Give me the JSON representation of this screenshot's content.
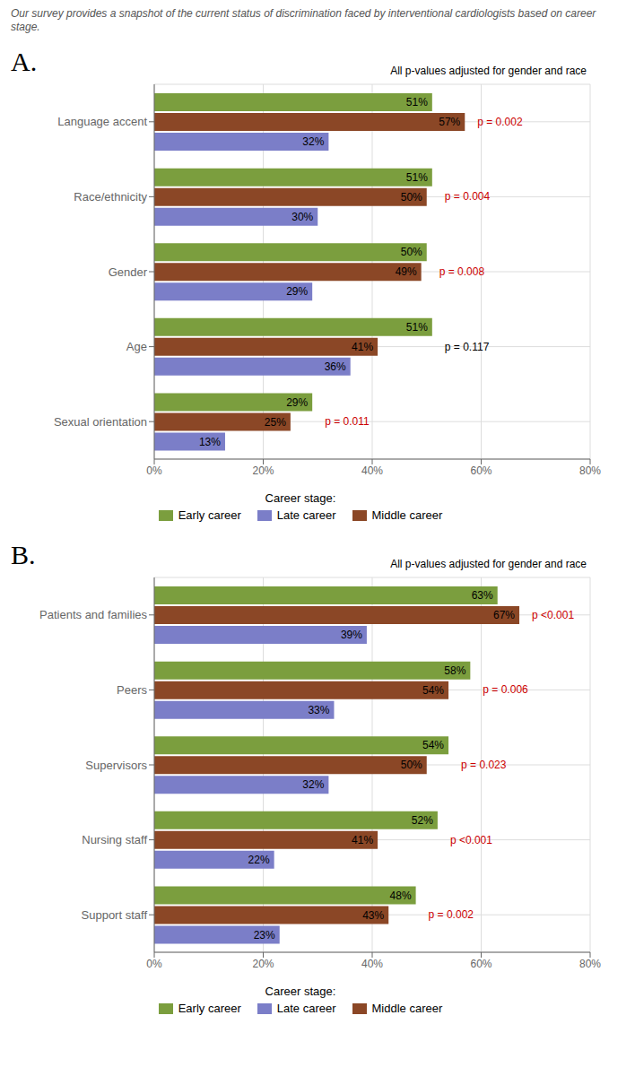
{
  "title": "Our survey provides a snapshot of the current status of discrimination faced by interventional cardiologists based on career stage.",
  "chart_data": [
    {
      "type": "bar",
      "orientation": "horizontal",
      "title": "A.",
      "subtitle": "All p-values adjusted for gender and race",
      "categories": [
        "Language accent",
        "Race/ethnicity",
        "Gender",
        "Age",
        "Sexual orientation"
      ],
      "series": [
        {
          "name": "Early career",
          "color": "#7B9E3E",
          "values": [
            51,
            51,
            50,
            51,
            29
          ],
          "value_labels": [
            "51%",
            "51%",
            "50%",
            "51%",
            "29%"
          ]
        },
        {
          "name": "Middle career",
          "color": "#8B4726",
          "values": [
            57,
            50,
            49,
            41,
            25
          ],
          "value_labels": [
            "57%",
            "50%",
            "49%",
            "41%",
            "25%"
          ]
        },
        {
          "name": "Late career",
          "color": "#7B7EC8",
          "values": [
            32,
            30,
            29,
            36,
            13
          ],
          "value_labels": [
            "32%",
            "30%",
            "29%",
            "36%",
            "13%"
          ]
        }
      ],
      "annotations": [
        {
          "category": "Language accent",
          "text": "p = 0.002",
          "color": "#cc0000"
        },
        {
          "category": "Race/ethnicity",
          "text": "p = 0.004",
          "color": "#cc0000"
        },
        {
          "category": "Gender",
          "text": "p = 0.008",
          "color": "#cc0000"
        },
        {
          "category": "Age",
          "text": "p = 0.117",
          "color": "#000000"
        },
        {
          "category": "Sexual orientation",
          "text": "p = 0.011",
          "color": "#cc0000"
        }
      ],
      "xlim": [
        0,
        80
      ],
      "xticks": [
        {
          "value": 0,
          "label": "0%"
        },
        {
          "value": 20,
          "label": "20%"
        },
        {
          "value": 40,
          "label": "40%"
        },
        {
          "value": 60,
          "label": "60%"
        },
        {
          "value": 80,
          "label": "80%"
        }
      ],
      "grid": true,
      "legend": "bottom",
      "legend_title": "Career stage:",
      "data_labels": true
    },
    {
      "type": "bar",
      "orientation": "horizontal",
      "title": "B.",
      "subtitle": "All p-values adjusted for gender and race",
      "categories": [
        "Patients and families",
        "Peers",
        "Supervisors",
        "Nursing staff",
        "Support staff"
      ],
      "series": [
        {
          "name": "Early career",
          "color": "#7B9E3E",
          "values": [
            63,
            58,
            54,
            52,
            48
          ],
          "value_labels": [
            "63%",
            "58%",
            "54%",
            "52%",
            "48%"
          ]
        },
        {
          "name": "Middle career",
          "color": "#8B4726",
          "values": [
            67,
            54,
            50,
            41,
            43
          ],
          "value_labels": [
            "67%",
            "54%",
            "50%",
            "41%",
            "43%"
          ]
        },
        {
          "name": "Late career",
          "color": "#7B7EC8",
          "values": [
            39,
            33,
            32,
            22,
            23
          ],
          "value_labels": [
            "39%",
            "33%",
            "32%",
            "22%",
            "23%"
          ]
        }
      ],
      "annotations": [
        {
          "category": "Patients and families",
          "text": "p <0.001",
          "color": "#cc0000"
        },
        {
          "category": "Peers",
          "text": "p = 0.006",
          "color": "#cc0000"
        },
        {
          "category": "Supervisors",
          "text": "p = 0.023",
          "color": "#cc0000"
        },
        {
          "category": "Nursing staff",
          "text": "p <0.001",
          "color": "#cc0000"
        },
        {
          "category": "Support staff",
          "text": "p = 0.002",
          "color": "#cc0000"
        }
      ],
      "xlim": [
        0,
        80
      ],
      "xticks": [
        {
          "value": 0,
          "label": "0%"
        },
        {
          "value": 20,
          "label": "20%"
        },
        {
          "value": 40,
          "label": "40%"
        },
        {
          "value": 60,
          "label": "60%"
        },
        {
          "value": 80,
          "label": "80%"
        }
      ],
      "grid": true,
      "legend": "bottom",
      "legend_title": "Career stage:",
      "data_labels": true
    }
  ]
}
